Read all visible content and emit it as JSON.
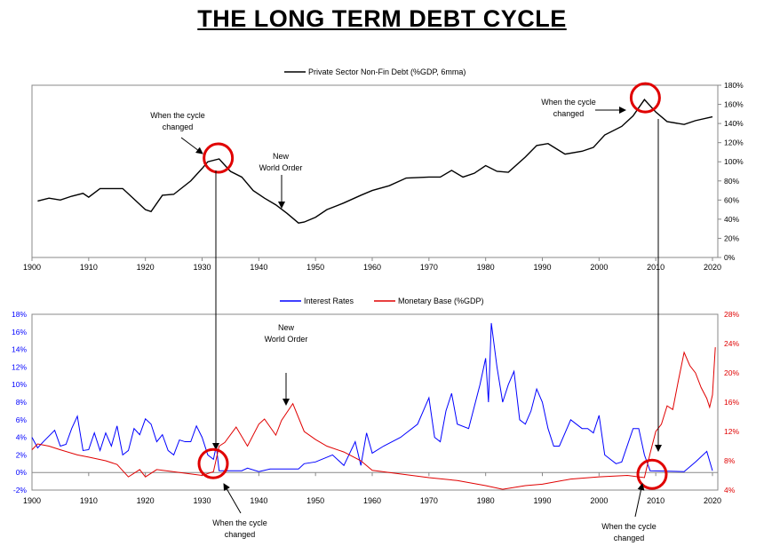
{
  "title": "THE LONG TERM DEBT CYCLE",
  "chart_data": [
    {
      "type": "line",
      "legend_position": "top",
      "grid": false,
      "xlim": [
        1900,
        2020
      ],
      "x_ticks": [
        "1900",
        "1910",
        "1920",
        "1930",
        "1940",
        "1950",
        "1960",
        "1970",
        "1980",
        "1990",
        "2000",
        "2010",
        "2020"
      ],
      "ylim": [
        0,
        180
      ],
      "y_axis_side": "right",
      "y_ticks": [
        "0%",
        "20%",
        "40%",
        "60%",
        "80%",
        "100%",
        "120%",
        "140%",
        "160%",
        "180%"
      ],
      "series": [
        {
          "name": "Private Sector Non-Fin Debt (%GDP, 6mma)",
          "color": "#000000",
          "x": [
            1901,
            1903,
            1905,
            1907,
            1909,
            1910,
            1912,
            1914,
            1916,
            1918,
            1920,
            1921,
            1923,
            1925,
            1928,
            1930,
            1931,
            1933,
            1935,
            1937,
            1939,
            1941,
            1943,
            1945,
            1947,
            1948,
            1950,
            1952,
            1955,
            1958,
            1960,
            1963,
            1966,
            1970,
            1972,
            1974,
            1976,
            1978,
            1980,
            1982,
            1984,
            1987,
            1989,
            1991,
            1994,
            1997,
            1999,
            2001,
            2004,
            2006,
            2008,
            2010,
            2012,
            2015,
            2017,
            2020
          ],
          "y": [
            59,
            62,
            60,
            64,
            67,
            63,
            72,
            72,
            72,
            61,
            50,
            48,
            65,
            66,
            80,
            93,
            100,
            103,
            90,
            84,
            70,
            62,
            55,
            46,
            36,
            37,
            42,
            50,
            57,
            65,
            70,
            75,
            83,
            84,
            84,
            91,
            84,
            88,
            96,
            90,
            89,
            105,
            117,
            119,
            108,
            111,
            115,
            128,
            137,
            148,
            165,
            152,
            142,
            139,
            143,
            147
          ]
        }
      ],
      "annotations": [
        {
          "text": [
            "When the cycle",
            "changed"
          ],
          "x": 1933,
          "y": 103
        },
        {
          "text": [
            "New",
            "World Order"
          ],
          "x": 1944,
          "y": 50
        },
        {
          "text": [
            "When the cycle",
            "changed"
          ],
          "x": 2008,
          "y": 165
        }
      ]
    },
    {
      "type": "line",
      "legend_position": "top",
      "grid": false,
      "xlim": [
        1900,
        2020
      ],
      "x_ticks": [
        "1900",
        "1910",
        "1920",
        "1930",
        "1940",
        "1950",
        "1960",
        "1970",
        "1980",
        "1990",
        "2000",
        "2010",
        "2020"
      ],
      "ylim": [
        -2,
        18
      ],
      "y_ticks": [
        "-2%",
        "0%",
        "2%",
        "4%",
        "6%",
        "8%",
        "10%",
        "12%",
        "14%",
        "16%",
        "18%"
      ],
      "y2lim": [
        4,
        28
      ],
      "y2_ticks": [
        "4%",
        "8%",
        "12%",
        "16%",
        "20%",
        "24%",
        "28%"
      ],
      "series": [
        {
          "name": "Interest Rates",
          "color": "#0000ff",
          "axis": "left",
          "x": [
            1900,
            1901,
            1902,
            1904,
            1905,
            1906,
            1907,
            1908,
            1909,
            1910,
            1911,
            1912,
            1913,
            1914,
            1915,
            1916,
            1917,
            1918,
            1919,
            1920,
            1921,
            1922,
            1923,
            1924,
            1925,
            1926,
            1927,
            1928,
            1929,
            1930,
            1931,
            1932,
            1932.5,
            1933,
            1934,
            1937,
            1938,
            1940,
            1942,
            1947,
            1948,
            1950,
            1953,
            1955,
            1957,
            1958,
            1959,
            1960,
            1962,
            1965,
            1968,
            1969,
            1970,
            1971,
            1972,
            1973,
            1974,
            1975,
            1977,
            1978,
            1979,
            1980,
            1980.5,
            1981,
            1982,
            1983,
            1984,
            1985,
            1986,
            1987,
            1988,
            1989,
            1990,
            1991,
            1992,
            1993,
            1994,
            1995,
            1997,
            1998,
            1999,
            2000,
            2001,
            2002,
            2003,
            2004,
            2006,
            2007,
            2008,
            2009,
            2015,
            2017,
            2019,
            2020
          ],
          "y": [
            4,
            2.8,
            3.5,
            4.8,
            3,
            3.2,
            5,
            6.4,
            2.5,
            2.6,
            4.5,
            2.5,
            4.5,
            3,
            5.3,
            2,
            2.5,
            5,
            4.3,
            6.1,
            5.5,
            3.5,
            4.3,
            2.5,
            2,
            3.7,
            3.5,
            3.5,
            5.3,
            4,
            2,
            1.5,
            3,
            0.2,
            0.2,
            0.2,
            0.5,
            0.1,
            0.4,
            0.4,
            1,
            1.2,
            2,
            0.8,
            3.5,
            0.8,
            4.5,
            2.2,
            3,
            4,
            5.5,
            7,
            8.5,
            4,
            3.5,
            7,
            9,
            5.5,
            5,
            7.5,
            10,
            13,
            8,
            17,
            12,
            8,
            10,
            11.5,
            6,
            5.5,
            7,
            9.5,
            8,
            5,
            3,
            3,
            4.5,
            6,
            5,
            5,
            4.5,
            6.5,
            2,
            1.5,
            1,
            1.2,
            5,
            5,
            2,
            0.2,
            0.1,
            1.2,
            2.4,
            0.2
          ]
        },
        {
          "name": "Monetary Base (%GDP)",
          "color": "#e00000",
          "axis": "right",
          "x": [
            1900,
            1901,
            1903,
            1905,
            1908,
            1910,
            1913,
            1915,
            1917,
            1919,
            1920,
            1922,
            1925,
            1930,
            1932,
            1933,
            1934,
            1936,
            1938,
            1940,
            1941,
            1943,
            1944,
            1946,
            1948,
            1950,
            1952,
            1955,
            1958,
            1960,
            1965,
            1970,
            1975,
            1980,
            1983,
            1987,
            1990,
            1995,
            2000,
            2005,
            2008,
            2009,
            2010,
            2011,
            2012,
            2013,
            2014,
            2015,
            2016,
            2017,
            2018,
            2019,
            2019.5,
            2020,
            2020.5
          ],
          "y": [
            9.5,
            10.3,
            10,
            9.5,
            8.8,
            8.5,
            8,
            7.5,
            5.8,
            6.8,
            5.8,
            6.8,
            6.5,
            6,
            6.5,
            10,
            10.5,
            12.6,
            10,
            13,
            13.7,
            11.5,
            13.5,
            15.8,
            12,
            10.9,
            10,
            9.2,
            8,
            6.7,
            6.2,
            5.7,
            5.3,
            4.6,
            4.1,
            4.6,
            4.8,
            5.5,
            5.8,
            6,
            5.7,
            9,
            12,
            13,
            15.5,
            15,
            19,
            22.8,
            21,
            20,
            18,
            16.5,
            15.3,
            17,
            23.5
          ]
        }
      ],
      "annotations": [
        {
          "text": [
            "New",
            "World Order"
          ],
          "x": 1945,
          "y": 8
        },
        {
          "text": [
            "When the cycle",
            "changed"
          ],
          "x": 1932,
          "y": 0
        },
        {
          "text": [
            "When the cycle",
            "changed"
          ],
          "x": 2008,
          "y": 0
        }
      ]
    }
  ]
}
